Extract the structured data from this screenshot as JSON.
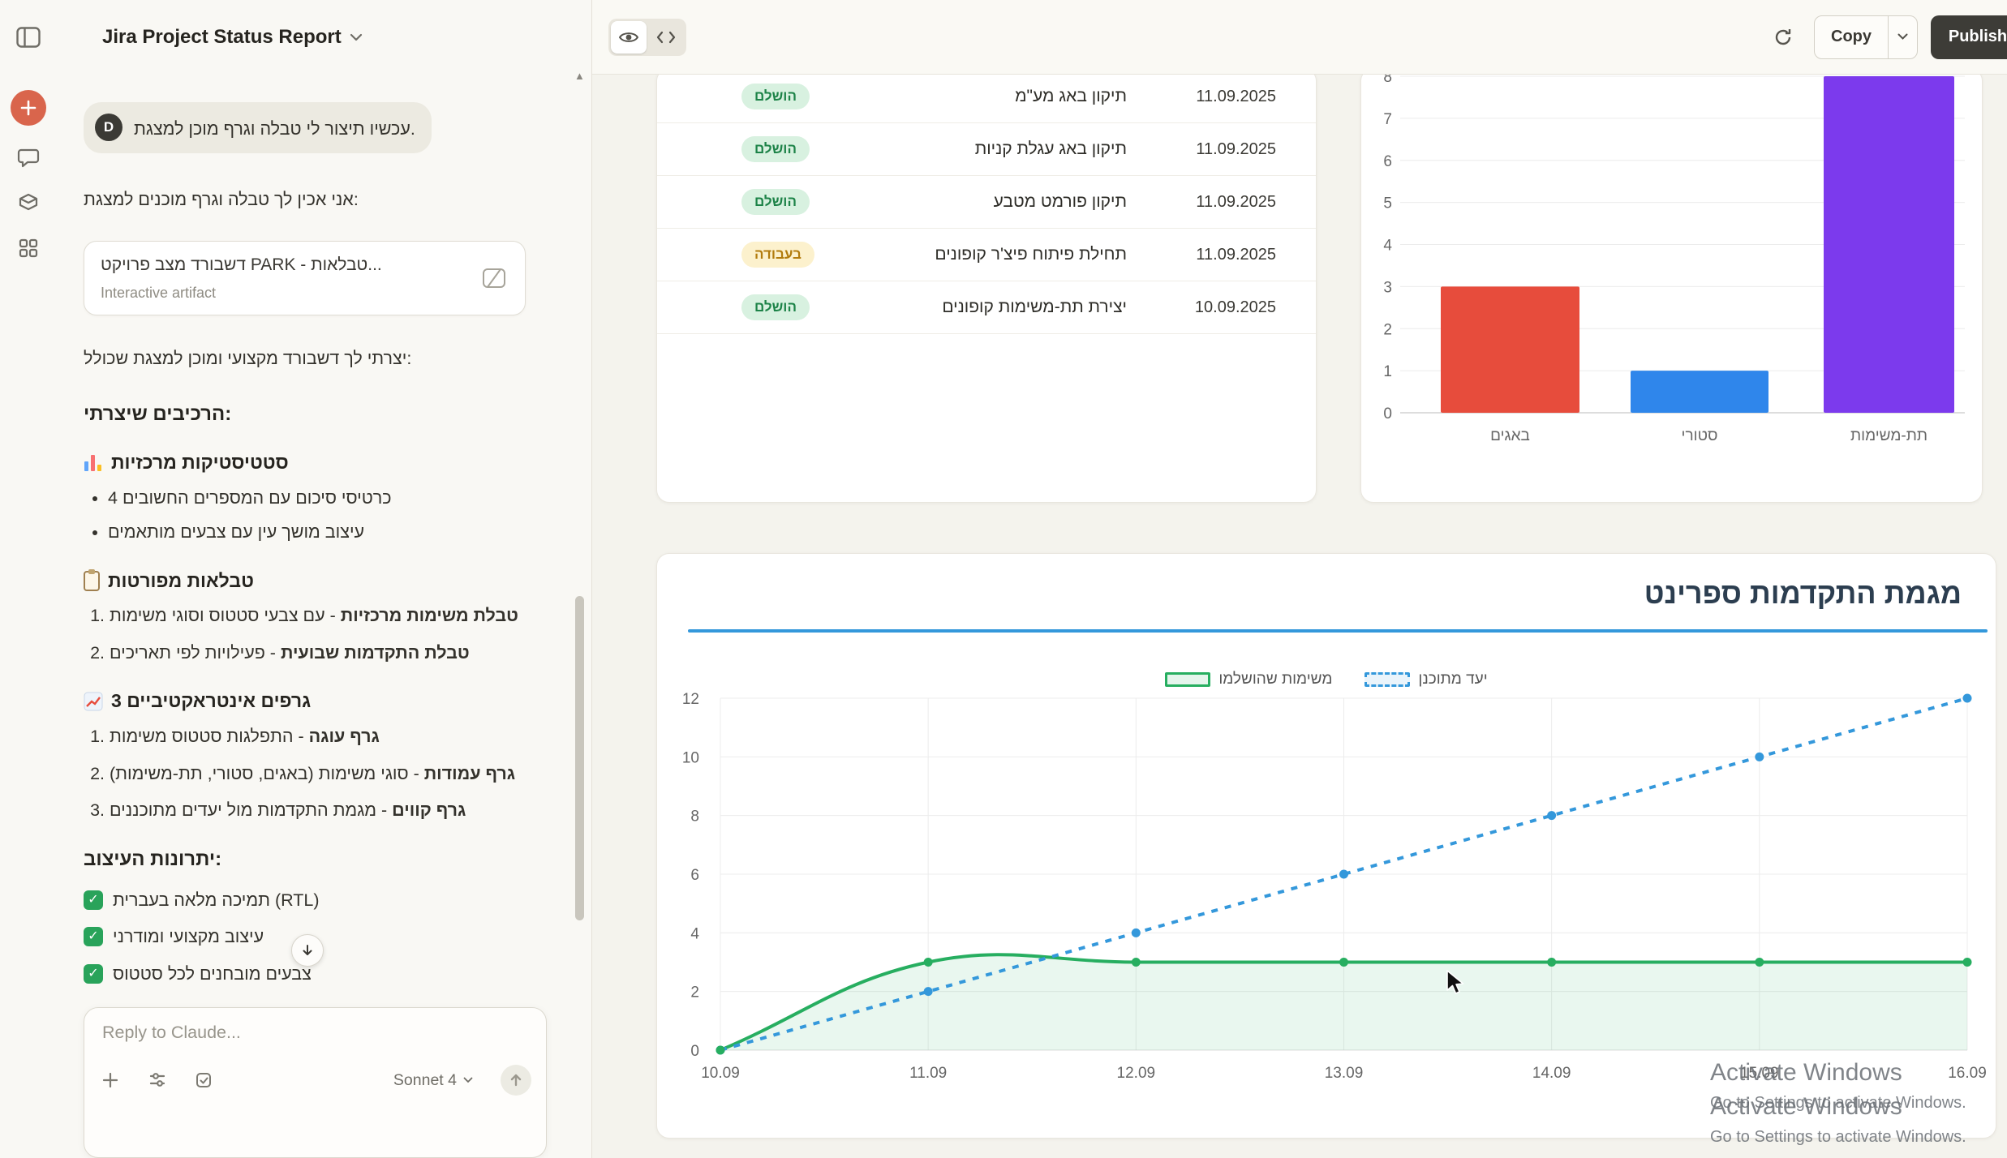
{
  "app": {
    "chat_title": "Jira Project Status Report"
  },
  "rail": {
    "icons": [
      "sidebar-toggle",
      "new-chat",
      "chats",
      "projects",
      "artifacts"
    ]
  },
  "chat": {
    "user_avatar": "D",
    "user_message": "עכשיו תיצור לי טבלה וגרף מוכן למצגת.",
    "assistant_intro": "אני אכין לך טבלה וגרף מוכנים למצגת:",
    "artifact_chip": {
      "title": "דשבורד מצב פרויקט PARK - טבלאות...",
      "subtitle": "Interactive artifact",
      "icon": "artifact-slash-icon"
    },
    "after_chip": "יצרתי לך דשבורד מקצועי ומוכן למצגת שכולל:",
    "components_heading": "הרכיבים שיצרתי:",
    "sections": [
      {
        "icon": "bar-chart-icon",
        "title": "סטטיסטיקות מרכזיות",
        "items": [
          {
            "text": "4 כרטיסי סיכום עם המספרים החשובים"
          },
          {
            "text": "עיצוב מושך עין עם צבעים מותאמים"
          }
        ]
      },
      {
        "icon": "clipboard-icon",
        "title": "טבלאות מפורטות",
        "items": [
          {
            "bold": "טבלת משימות מרכזיות",
            "rest": " - עם צבעי סטטוס וסוגי משימות"
          },
          {
            "bold": "טבלת התקדמות שבועית",
            "rest": " - פעילויות לפי תאריכים"
          }
        ]
      },
      {
        "icon": "chart-up-icon",
        "title": "3 גרפים אינטראקטיביים",
        "items": [
          {
            "bold": "גרף עוגה",
            "rest": " - התפלגות סטטוס משימות"
          },
          {
            "bold": "גרף עמודות",
            "rest": " - סוגי משימות (באגים, סטורי, תת-משימות)"
          },
          {
            "bold": "גרף קווים",
            "rest": " - מגמת התקדמות מול יעדים מתוכננים"
          }
        ]
      }
    ],
    "benefits_heading": "יתרונות העיצוב:",
    "check_icon": "✓",
    "benefits": [
      {
        "text": "תמיכה מלאה בעברית (RTL)"
      },
      {
        "text": "עיצוב מקצועי ומודרני"
      },
      {
        "text": "צבעים מובחנים לכל סטטוס"
      }
    ],
    "composer": {
      "placeholder": "Reply to Claude...",
      "model": "Sonnet 4"
    }
  },
  "artifact": {
    "header": {
      "copy_label": "Copy",
      "publish_label": "Publish",
      "view_icons": [
        "eye",
        "code"
      ]
    },
    "table": {
      "rows": [
        {
          "status": "הושלם",
          "type": "done",
          "task": "תיקון באג מע\"מ",
          "date": "11.09.2025"
        },
        {
          "status": "הושלם",
          "type": "done",
          "task": "תיקון באג עגלת קניות",
          "date": "11.09.2025"
        },
        {
          "status": "הושלם",
          "type": "done",
          "task": "תיקון פורמט מטבע",
          "date": "11.09.2025"
        },
        {
          "status": "בעבודה",
          "type": "progress",
          "task": "תחילת פיתוח פיצ'ר קופונים",
          "date": "11.09.2025"
        },
        {
          "status": "הושלם",
          "type": "done",
          "task": "יצירת תת-משימות קופונים",
          "date": "10.09.2025"
        }
      ]
    }
  },
  "chart_data": [
    {
      "type": "bar",
      "categories": [
        "באגים",
        "סטורי",
        "תת-משימות"
      ],
      "values": [
        3,
        1,
        8
      ],
      "colors": [
        "#e74c3c",
        "#2f86eb",
        "#7c3aed"
      ],
      "ylim": [
        0,
        8
      ],
      "ytick_step": 1,
      "grid": true,
      "title": "",
      "xlabel": "",
      "ylabel": ""
    },
    {
      "type": "line",
      "title": "מגמת התקדמות ספרינט",
      "x": [
        "10.09",
        "11.09",
        "12.09",
        "13.09",
        "14.09",
        "15.09",
        "16.09"
      ],
      "series": [
        {
          "name": "משימות שהושלמו",
          "values": [
            0,
            3,
            3,
            3,
            3,
            3,
            3
          ],
          "color": "#27ae60",
          "fill": "rgba(39,174,96,0.10)",
          "style": "solid"
        },
        {
          "name": "יעד מתוכנן",
          "values": [
            0,
            2,
            4,
            6,
            8,
            10,
            12
          ],
          "color": "#3498db",
          "style": "dashed"
        }
      ],
      "ylim": [
        0,
        12
      ],
      "ytick_step": 2,
      "grid": true,
      "legend_position": "top"
    }
  ],
  "watermark": {
    "title": "Activate Windows",
    "subtitle": "Go to Settings to activate Windows."
  }
}
